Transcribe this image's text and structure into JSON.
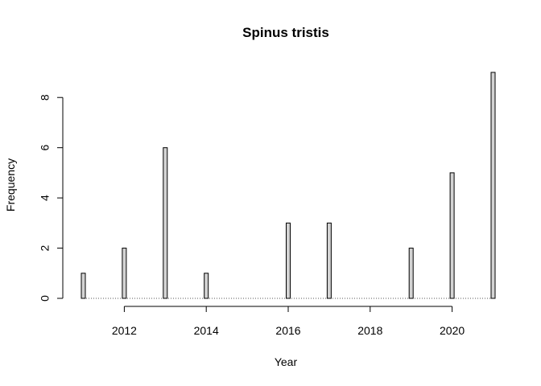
{
  "chart_data": {
    "type": "bar",
    "title": "Spinus tristis",
    "xlabel": "Year",
    "ylabel": "Frequency",
    "x": [
      2011,
      2012,
      2013,
      2014,
      2015,
      2016,
      2017,
      2018,
      2019,
      2020,
      2021
    ],
    "values": [
      1,
      2,
      6,
      1,
      0,
      3,
      3,
      0,
      2,
      5,
      9
    ],
    "xlim": [
      2011,
      2021
    ],
    "ylim": [
      0,
      9
    ],
    "xticks": [
      2012,
      2014,
      2016,
      2018,
      2020
    ],
    "yticks": [
      0,
      2,
      4,
      6,
      8
    ],
    "bar_color": "#d3d3d3",
    "grid": false,
    "legend": "none"
  }
}
